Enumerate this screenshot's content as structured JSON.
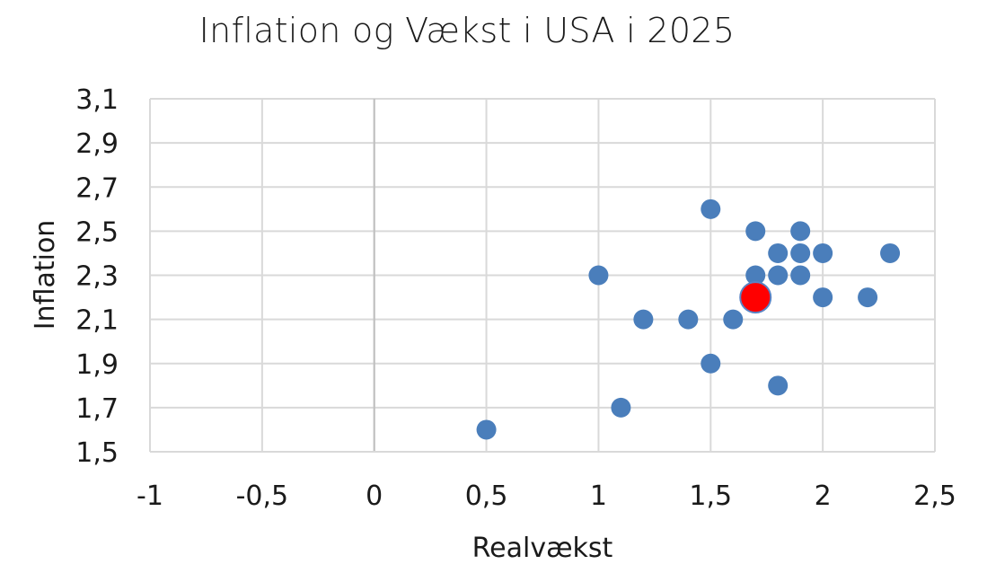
{
  "chart_data": {
    "type": "scatter",
    "title": "Inflation og Vækst i USA i 2025",
    "xlabel": "Realvækst",
    "ylabel": "Inflation",
    "xlim": [
      -1,
      2.5
    ],
    "ylim": [
      1.5,
      3.1
    ],
    "x_ticks": [
      "-1",
      "-0,5",
      "0",
      "0,5",
      "1",
      "1,5",
      "2",
      "2,5"
    ],
    "y_ticks": [
      "1,5",
      "1,7",
      "1,9",
      "2,1",
      "2,3",
      "2,5",
      "2,7",
      "2,9",
      "3,1"
    ],
    "grid": true,
    "point_color": "#4a7ebb",
    "highlight_color": "#ff0000",
    "points": [
      {
        "x": 0.5,
        "y": 1.6
      },
      {
        "x": 1.0,
        "y": 2.3
      },
      {
        "x": 1.1,
        "y": 1.7
      },
      {
        "x": 1.2,
        "y": 2.1
      },
      {
        "x": 1.4,
        "y": 2.1
      },
      {
        "x": 1.5,
        "y": 2.6
      },
      {
        "x": 1.5,
        "y": 1.9
      },
      {
        "x": 1.6,
        "y": 2.1
      },
      {
        "x": 1.7,
        "y": 2.5
      },
      {
        "x": 1.7,
        "y": 2.3
      },
      {
        "x": 1.7,
        "y": 2.2
      },
      {
        "x": 1.8,
        "y": 2.4
      },
      {
        "x": 1.8,
        "y": 2.3
      },
      {
        "x": 1.8,
        "y": 1.8
      },
      {
        "x": 1.9,
        "y": 2.5
      },
      {
        "x": 1.9,
        "y": 2.4
      },
      {
        "x": 1.9,
        "y": 2.3
      },
      {
        "x": 2.0,
        "y": 2.4
      },
      {
        "x": 2.0,
        "y": 2.2
      },
      {
        "x": 2.2,
        "y": 2.2
      },
      {
        "x": 2.3,
        "y": 2.4
      }
    ],
    "highlight": {
      "x": 1.7,
      "y": 2.2
    }
  }
}
